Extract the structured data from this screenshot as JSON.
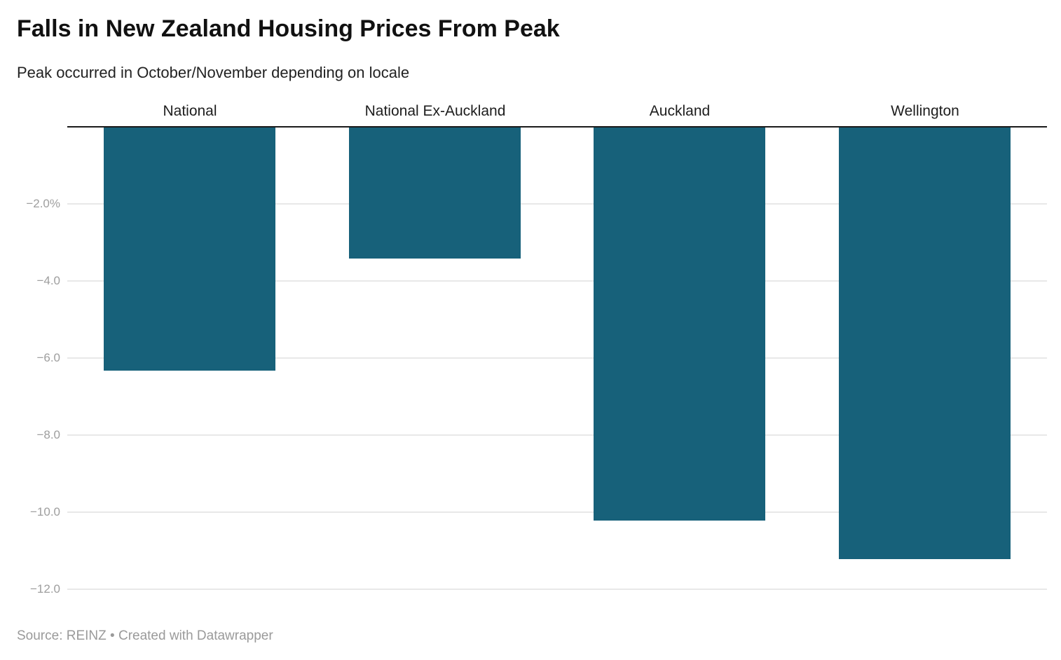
{
  "header": {
    "title": "Falls in New Zealand Housing Prices From Peak",
    "subtitle": "Peak occurred in October/November depending on locale"
  },
  "footer": {
    "source_text": "Source: REINZ • Created with Datawrapper"
  },
  "colors": {
    "bar": "#17617a",
    "axis_line": "#1a1a1a",
    "gridline": "#e8e8e8",
    "tick_label": "#9e9e9e",
    "category_label": "#1d1d1d"
  },
  "chart_data": {
    "type": "bar",
    "orientation": "vertical",
    "title": "Falls in New Zealand Housing Prices From Peak",
    "subtitle": "Peak occurred in October/November depending on locale",
    "categories": [
      "National",
      "National Ex-Auckland",
      "Auckland",
      "Wellington"
    ],
    "values": [
      -6.3,
      -3.4,
      -10.2,
      -11.2
    ],
    "unit": "%",
    "ylim": [
      -12.6,
      0
    ],
    "grid": true,
    "legend": false,
    "yticks": [
      {
        "value": -2,
        "label": "−2.0%"
      },
      {
        "value": -4,
        "label": "−4.0"
      },
      {
        "value": -6,
        "label": "−6.0"
      },
      {
        "value": -8,
        "label": "−8.0"
      },
      {
        "value": -10,
        "label": "−10.0"
      },
      {
        "value": -12,
        "label": "−12.0"
      }
    ],
    "source": "Source: REINZ • Created with Datawrapper"
  }
}
